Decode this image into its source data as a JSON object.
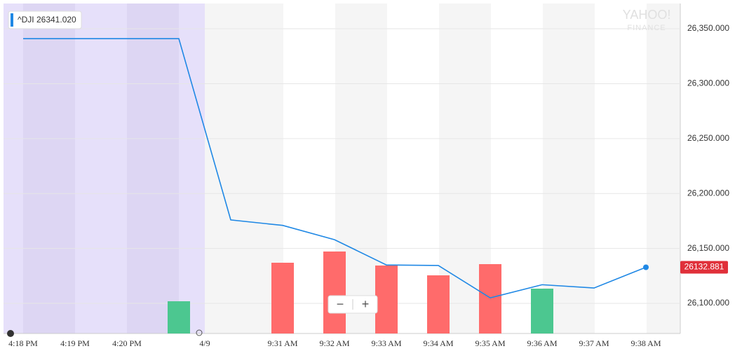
{
  "chart_data": {
    "type": "line",
    "ticker": "^DJI",
    "ticker_value_label": "26341.020",
    "watermark": [
      "YAHOO!",
      "FINANCE"
    ],
    "date_marker": "4/9",
    "categories": [
      "4:18 PM",
      "4:19 PM",
      "4:20 PM",
      null,
      null,
      "9:31 AM",
      "9:32 AM",
      "9:33 AM",
      "9:34 AM",
      "9:35 AM",
      "9:36 AM",
      "9:37 AM",
      "9:38 AM"
    ],
    "series": [
      {
        "name": "^DJI",
        "color": "#1f88e5",
        "values": [
          26341.02,
          26341.02,
          26341.02,
          26341.02,
          26176,
          26171,
          26158,
          26135,
          26134.5,
          26105,
          26117,
          26114,
          26132.881
        ]
      }
    ],
    "volume": {
      "values": [
        null,
        null,
        null,
        46,
        null,
        101,
        117,
        97,
        83,
        99,
        64,
        null,
        null
      ],
      "colors": [
        null,
        null,
        null,
        "#4cc790",
        null,
        "#ff6b6b",
        "#ff6b6b",
        "#ff6b6b",
        "#ff6b6b",
        "#ff6b6b",
        "#4cc790",
        null,
        null
      ],
      "lim": [
        0,
        150
      ]
    },
    "ylim": [
      26072.6,
      26373
    ],
    "yticks": [
      {
        "value": 26100,
        "label": "26,100.000"
      },
      {
        "value": 26150,
        "label": "26,150.000"
      },
      {
        "value": 26200,
        "label": "26,200.000"
      },
      {
        "value": 26250,
        "label": "26,250.000"
      },
      {
        "value": 26300,
        "label": "26,300.000"
      },
      {
        "value": 26350,
        "label": "26,350.000"
      }
    ],
    "grid": true,
    "zoom_buttons": [
      "−",
      "+"
    ]
  }
}
